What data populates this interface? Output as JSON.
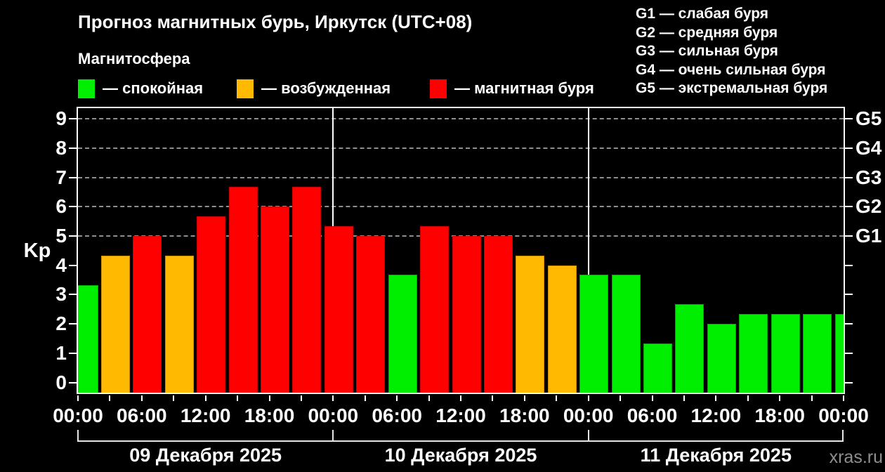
{
  "title": "Прогноз магнитных бурь, Иркутск (UTC+08)",
  "subtitle": "Магнитосфера",
  "legend": {
    "quiet": {
      "label": "— спокойная",
      "color": "#00ee00",
      "border": "#00a800"
    },
    "excited": {
      "label": "— возбужденная",
      "color": "#ffb900",
      "border": "#cc8d00"
    },
    "storm": {
      "label": "— магнитная буря",
      "color": "#ff0000",
      "border": "#cc0000"
    }
  },
  "g_legend": [
    "G1 — слабая буря",
    "G2 — средняя буря",
    "G3 — сильная буря",
    "G4 — очень сильная буря",
    "G5 — экстремальная буря"
  ],
  "y_axis": {
    "label": "Kp",
    "ticks": [
      0,
      1,
      2,
      3,
      4,
      5,
      6,
      7,
      8,
      9
    ]
  },
  "right_axis": {
    "labels": [
      {
        "kp": 5,
        "label": "G1"
      },
      {
        "kp": 6,
        "label": "G2"
      },
      {
        "kp": 7,
        "label": "G3"
      },
      {
        "kp": 8,
        "label": "G4"
      },
      {
        "kp": 9,
        "label": "G5"
      }
    ]
  },
  "x_axis": {
    "time_labels": [
      "00:00",
      "06:00",
      "12:00",
      "18:00",
      "00:00",
      "06:00",
      "12:00",
      "18:00",
      "00:00",
      "06:00",
      "12:00",
      "18:00",
      "00:00"
    ]
  },
  "watermark": "xras.ru",
  "chart_data": {
    "type": "bar",
    "title": "Прогноз магнитных бурь, Иркутск (UTC+08)",
    "ylabel": "Kp",
    "ylim": [
      0,
      9
    ],
    "interval_hours": 3,
    "gridlines_kp": [
      5,
      6,
      7,
      8,
      9
    ],
    "legend_position": "top",
    "days": [
      {
        "date": "09 Декабря 2025",
        "values": [
          3.33,
          4.33,
          5.0,
          4.33,
          5.67,
          6.67,
          6.0,
          6.67
        ],
        "states": [
          "quiet",
          "excited",
          "storm",
          "excited",
          "storm",
          "storm",
          "storm",
          "storm"
        ]
      },
      {
        "date": "10 Декабря 2025",
        "values": [
          5.33,
          5.0,
          3.67,
          5.33,
          5.0,
          5.0,
          4.33,
          4.0
        ],
        "states": [
          "storm",
          "storm",
          "quiet",
          "storm",
          "storm",
          "storm",
          "excited",
          "excited"
        ]
      },
      {
        "date": "11 Декабря 2025",
        "values": [
          3.67,
          3.67,
          1.33,
          2.67,
          2.0,
          2.33,
          2.33,
          2.33
        ],
        "states": [
          "quiet",
          "quiet",
          "quiet",
          "quiet",
          "quiet",
          "quiet",
          "quiet",
          "quiet"
        ]
      }
    ],
    "next_day_partial": {
      "value": 2.33,
      "state": "quiet"
    }
  }
}
